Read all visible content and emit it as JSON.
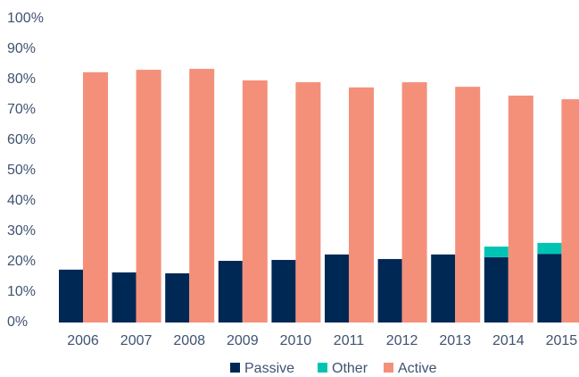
{
  "chart_data": {
    "type": "bar",
    "categories": [
      "2006",
      "2007",
      "2008",
      "2009",
      "2010",
      "2011",
      "2012",
      "2013",
      "2014",
      "2015"
    ],
    "series": [
      {
        "name": "Passive",
        "color": "#002855",
        "values": [
          17.4,
          16.5,
          16.2,
          20.3,
          20.6,
          22.4,
          20.9,
          22.4,
          21.5,
          22.6
        ]
      },
      {
        "name": "Other",
        "color": "#00c4b3",
        "values": [
          0,
          0,
          0,
          0,
          0,
          0,
          0,
          0,
          3.5,
          3.6
        ]
      },
      {
        "name": "Active",
        "color": "#f4907a",
        "values": [
          82.4,
          83.2,
          83.5,
          79.7,
          79.1,
          77.4,
          79.1,
          77.6,
          74.7,
          73.5
        ]
      }
    ],
    "ylim": [
      0,
      100
    ],
    "yticks": [
      {
        "value": 0,
        "label": "0%"
      },
      {
        "value": 10,
        "label": "10%"
      },
      {
        "value": 20,
        "label": "20%"
      },
      {
        "value": 30,
        "label": "30%"
      },
      {
        "value": 40,
        "label": "40%"
      },
      {
        "value": 50,
        "label": "50%"
      },
      {
        "value": 60,
        "label": "60%"
      },
      {
        "value": 70,
        "label": "70%"
      },
      {
        "value": 80,
        "label": "80%"
      },
      {
        "value": 90,
        "label": "90%"
      },
      {
        "value": 100,
        "label": "100%"
      }
    ],
    "grid": false,
    "legend": "bottom"
  }
}
